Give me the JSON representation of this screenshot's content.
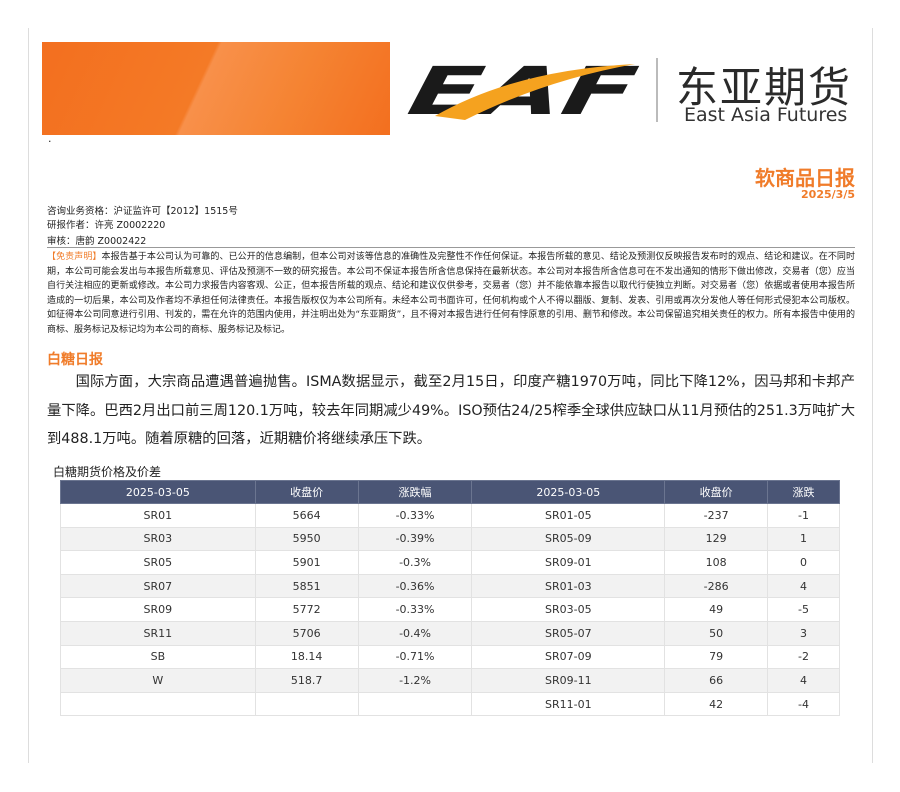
{
  "header": {
    "logo": "EAF",
    "logo_cn": "东亚期货",
    "logo_en": "East Asia Futures",
    "dot": "·"
  },
  "title": "软商品日报",
  "date": "2025/3/5",
  "info": [
    "咨询业务资格：沪证监许可【2012】1515号",
    "研报作者：许亮 Z0002220",
    "审核：唐韵 Z0002422"
  ],
  "disclaimer": {
    "label": "【免责声明】",
    "text": "本报告基于本公司认为可靠的、已公开的信息编制，但本公司对该等信息的准确性及完整性不作任何保证。本报告所载的意见、结论及预测仅反映报告发布时的观点、结论和建议。在不同时期，本公司可能会发出与本报告所载意见、评估及预测不一致的研究报告。本公司不保证本报告所含信息保持在最新状态。本公司对本报告所含信息可在不发出通知的情形下做出修改，交易者（您）应当自行关注相应的更新或修改。本公司力求报告内容客观、公正，但本报告所载的观点、结论和建议仅供参考，交易者（您）并不能依靠本报告以取代行使独立判断。对交易者（您）依据或者使用本报告所造成的一切后果，本公司及作者均不承担任何法律责任。本报告版权仅为本公司所有。未经本公司书面许可，任何机构或个人不得以翻版、复制、发表、引用或再次分发他人等任何形式侵犯本公司版权。如征得本公司同意进行引用、刊发的，需在允许的范围内使用，并注明出处为“东亚期货”，且不得对本报告进行任何有悖原意的引用、删节和修改。本公司保留追究相关责任的权力。所有本报告中使用的商标、服务标记及标记均为本公司的商标、服务标记及标记。"
  },
  "section": {
    "title": "白糖日报",
    "paragraph": "国际方面，大宗商品遭遇普遍抛售。ISMA数据显示，截至2月15日，印度产糖1970万吨，同比下降12%，因马邦和卡邦产量下降。巴西2月出口前三周120.1万吨，较去年同期减少49%。ISO预估24/25榨季全球供应缺口从11月预估的251.3万吨扩大到488.1万吨。随着原糖的回落，近期糖价将继续承压下跌。"
  },
  "table": {
    "caption": "白糖期货价格及价差",
    "columns": [
      "2025-03-05",
      "收盘价",
      "涨跌幅",
      "2025-03-05",
      "收盘价",
      "涨跌"
    ],
    "rows": [
      [
        "SR01",
        "5664",
        "-0.33%",
        "SR01-05",
        "-237",
        "-1"
      ],
      [
        "SR03",
        "5950",
        "-0.39%",
        "SR05-09",
        "129",
        "1"
      ],
      [
        "SR05",
        "5901",
        "-0.3%",
        "SR09-01",
        "108",
        "0"
      ],
      [
        "SR07",
        "5851",
        "-0.36%",
        "SR01-03",
        "-286",
        "4"
      ],
      [
        "SR09",
        "5772",
        "-0.33%",
        "SR03-05",
        "49",
        "-5"
      ],
      [
        "SR11",
        "5706",
        "-0.4%",
        "SR05-07",
        "50",
        "3"
      ],
      [
        "SB",
        "18.14",
        "-0.71%",
        "SR07-09",
        "79",
        "-2"
      ],
      [
        "W",
        "518.7",
        "-1.2%",
        "SR09-11",
        "66",
        "4"
      ],
      [
        null,
        null,
        null,
        "SR11-01",
        "42",
        "-4"
      ]
    ]
  }
}
